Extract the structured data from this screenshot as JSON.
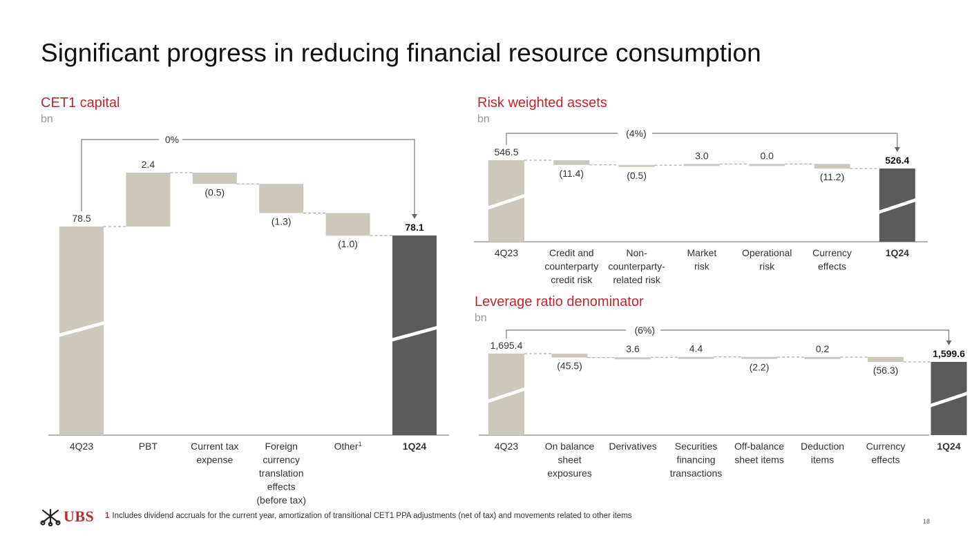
{
  "page": {
    "title": "Significant progress in reducing financial resource consumption",
    "page_number": "18",
    "logo_text": "UBS",
    "footnote_number": "1",
    "footnote_text": "Includes dividend accruals for the current year, amortization of transitional CET1 PPA adjustments (net of tax) and movements related to other items"
  },
  "colors": {
    "accent": "#c0272d",
    "bar_light": "#ccc9bc",
    "bar_dark": "#5a5b5a",
    "axis": "#999999",
    "connector": "#999999"
  },
  "chart_data": [
    {
      "id": "cet1",
      "type": "waterfall",
      "title": "CET1 capital",
      "unit": "bn",
      "change_label": "0%",
      "categories": [
        [
          "4Q23"
        ],
        [
          "PBT"
        ],
        [
          "Current tax",
          "expense"
        ],
        [
          "Foreign",
          "currency",
          "translation",
          "effects",
          "(before tax)"
        ],
        [
          "Other"
        ],
        [
          "1Q24"
        ]
      ],
      "superscripts": [
        "",
        "",
        "",
        "",
        "1",
        ""
      ],
      "values": [
        78.5,
        2.4,
        -0.5,
        -1.3,
        -1.0,
        78.1
      ],
      "labels": [
        "78.5",
        "2.4",
        "(0.5)",
        "(1.3)",
        "(1.0)",
        "78.1"
      ],
      "kinds": [
        "start",
        "delta",
        "delta",
        "delta",
        "delta",
        "end"
      ]
    },
    {
      "id": "rwa",
      "type": "waterfall",
      "title": "Risk weighted assets",
      "unit": "bn",
      "change_label": "(4%)",
      "categories": [
        [
          "4Q23"
        ],
        [
          "Credit and",
          "counterparty",
          "credit risk"
        ],
        [
          "Non-",
          "counterparty-",
          "related risk"
        ],
        [
          "Market",
          "risk"
        ],
        [
          "Operational",
          "risk"
        ],
        [
          "Currency",
          "effects"
        ],
        [
          "1Q24"
        ]
      ],
      "superscripts": [
        "",
        "",
        "",
        "",
        "",
        "",
        ""
      ],
      "values": [
        546.5,
        -11.4,
        -0.5,
        3.0,
        0.0,
        -11.2,
        526.4
      ],
      "labels": [
        "546.5",
        "(11.4)",
        "(0.5)",
        "3.0",
        "0.0",
        "(11.2)",
        "526.4"
      ],
      "kinds": [
        "start",
        "delta",
        "delta",
        "delta",
        "delta",
        "delta",
        "end"
      ]
    },
    {
      "id": "lrd",
      "type": "waterfall",
      "title": "Leverage ratio denominator",
      "unit": "bn",
      "change_label": "(6%)",
      "categories": [
        [
          "4Q23"
        ],
        [
          "On balance",
          "sheet",
          "exposures"
        ],
        [
          "Derivatives"
        ],
        [
          "Securities",
          "financing",
          "transactions"
        ],
        [
          "Off-balance",
          "sheet items"
        ],
        [
          "Deduction",
          "items"
        ],
        [
          "Currency",
          "effects"
        ],
        [
          "1Q24"
        ]
      ],
      "superscripts": [
        "",
        "",
        "",
        "",
        "",
        "",
        "",
        ""
      ],
      "values": [
        1695.4,
        -45.5,
        3.6,
        4.4,
        -2.2,
        0.2,
        -56.3,
        1599.6
      ],
      "labels": [
        "1,695.4",
        "(45.5)",
        "3.6",
        "4.4",
        "(2.2)",
        "0.2",
        "(56.3)",
        "1,599.6"
      ],
      "kinds": [
        "start",
        "delta",
        "delta",
        "delta",
        "delta",
        "delta",
        "delta",
        "end"
      ]
    }
  ]
}
